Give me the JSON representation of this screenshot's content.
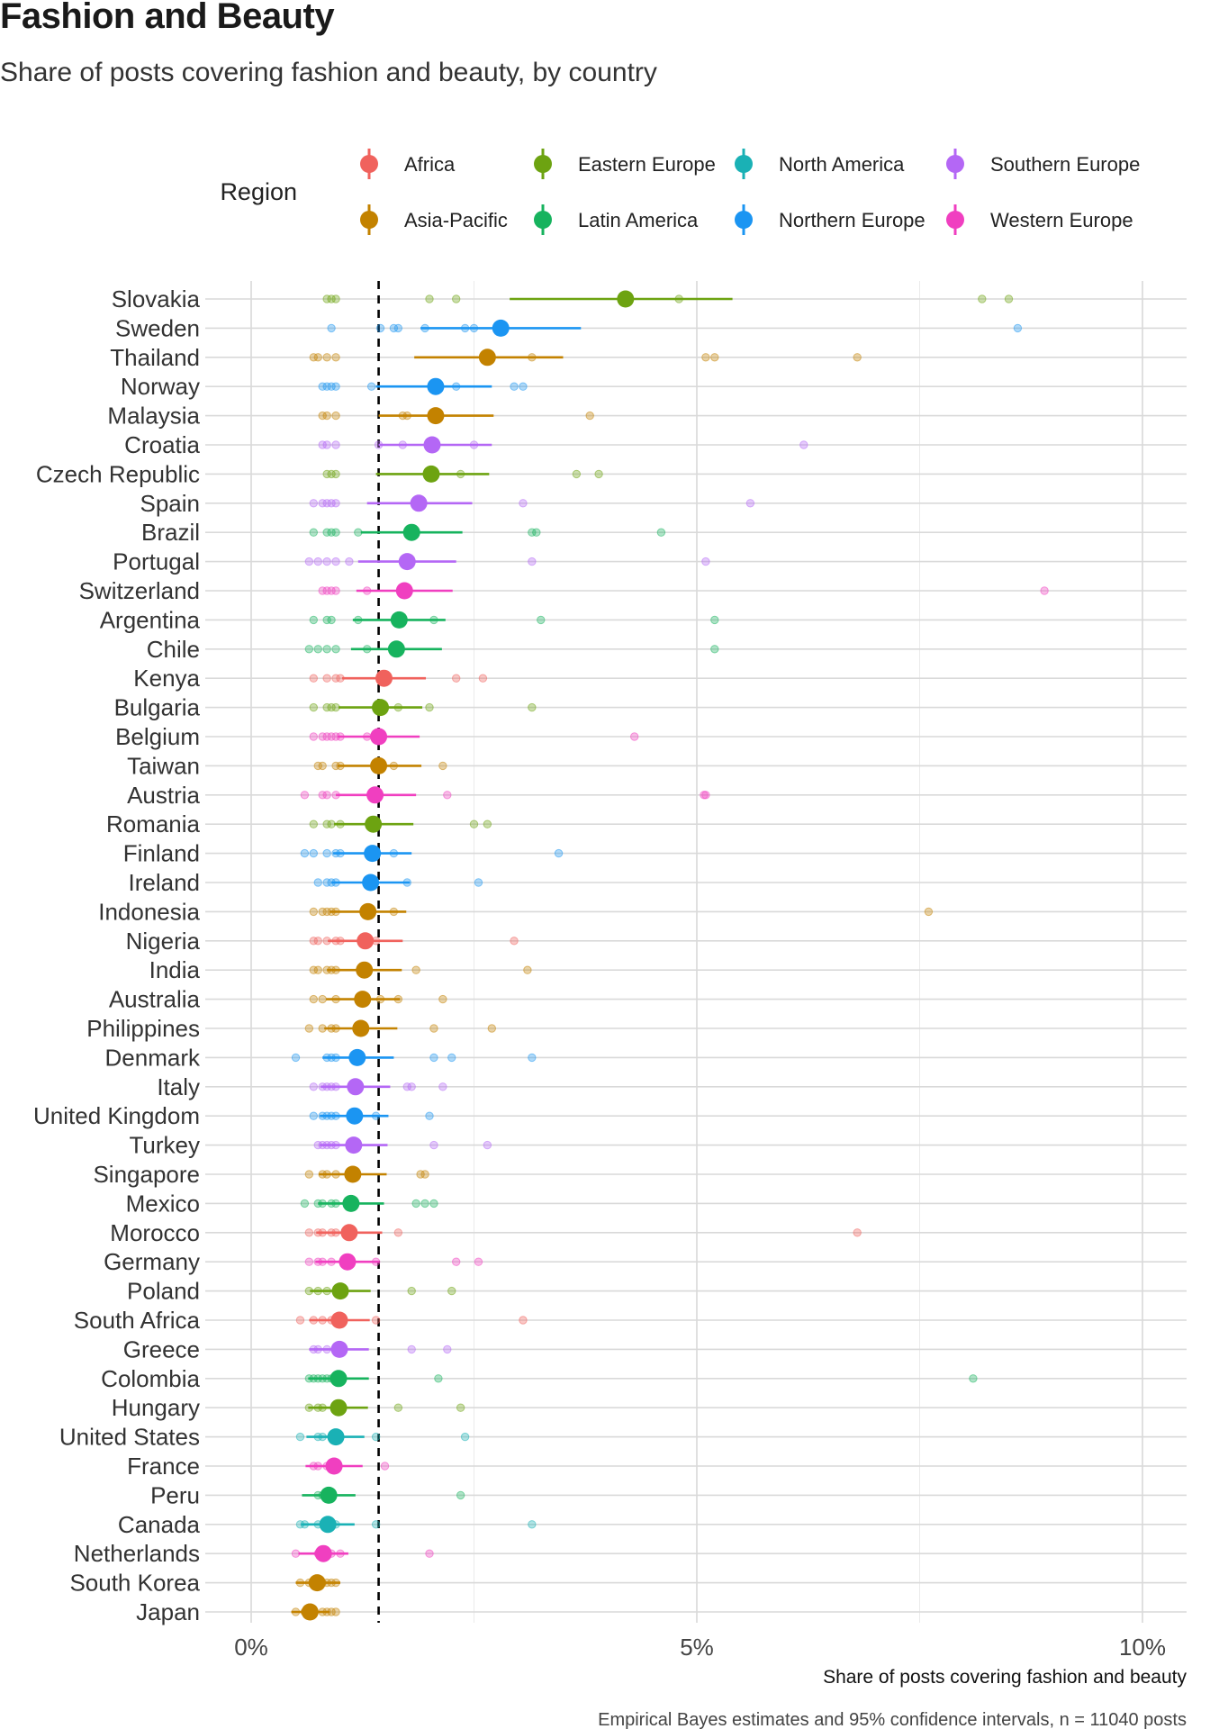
{
  "title": "Fashion and Beauty",
  "subtitle": "Share of posts covering fashion and beauty, by country",
  "caption": "Empirical Bayes estimates and 95% confidence intervals, n = 11040 posts",
  "legend": {
    "title": "Region",
    "items": [
      {
        "name": "Africa",
        "color": "#F0625D"
      },
      {
        "name": "Eastern Europe",
        "color": "#6DA311"
      },
      {
        "name": "North America",
        "color": "#1AB1B5"
      },
      {
        "name": "Southern Europe",
        "color": "#B467F5"
      },
      {
        "name": "Asia-Pacific",
        "color": "#C38200"
      },
      {
        "name": "Latin America",
        "color": "#17B35E"
      },
      {
        "name": "Northern Europe",
        "color": "#1B95F2"
      },
      {
        "name": "Western Europe",
        "color": "#F03FC0"
      }
    ]
  },
  "chart_data": {
    "type": "scatter",
    "title": "Fashion and Beauty",
    "xlabel": "Share of posts covering fashion and beauty",
    "ylabel": "",
    "xlim": [
      -1,
      10.5
    ],
    "xticks": [
      0,
      5,
      10
    ],
    "xtick_labels": [
      "0%",
      "5%",
      "10%"
    ],
    "reference_line": 1.43,
    "series": [
      {
        "country": "Slovakia",
        "region": "Eastern Europe",
        "estimate": 4.2,
        "ci": [
          2.9,
          5.4
        ],
        "points": [
          0.85,
          0.9,
          0.95,
          2.0,
          2.3,
          4.8,
          8.2,
          8.5
        ]
      },
      {
        "country": "Sweden",
        "region": "Northern Europe",
        "estimate": 2.8,
        "ci": [
          1.9,
          3.7
        ],
        "points": [
          0.9,
          1.45,
          1.6,
          1.65,
          1.95,
          2.4,
          2.5,
          8.6
        ]
      },
      {
        "country": "Thailand",
        "region": "Asia-Pacific",
        "estimate": 2.65,
        "ci": [
          1.83,
          3.5
        ],
        "points": [
          0.7,
          0.75,
          0.85,
          0.95,
          3.15,
          5.1,
          5.2,
          6.8
        ]
      },
      {
        "country": "Norway",
        "region": "Northern Europe",
        "estimate": 2.07,
        "ci": [
          1.4,
          2.7
        ],
        "points": [
          0.8,
          0.85,
          0.9,
          0.95,
          1.35,
          2.3,
          2.95,
          3.05
        ]
      },
      {
        "country": "Malaysia",
        "region": "Asia-Pacific",
        "estimate": 2.07,
        "ci": [
          1.43,
          2.72
        ],
        "points": [
          0.8,
          0.85,
          0.95,
          1.7,
          1.75,
          3.8
        ]
      },
      {
        "country": "Croatia",
        "region": "Southern Europe",
        "estimate": 2.03,
        "ci": [
          1.43,
          2.7
        ],
        "points": [
          0.8,
          0.85,
          0.95,
          1.43,
          1.7,
          2.5,
          6.2
        ]
      },
      {
        "country": "Czech Republic",
        "region": "Eastern Europe",
        "estimate": 2.02,
        "ci": [
          1.4,
          2.67
        ],
        "points": [
          0.85,
          0.9,
          0.95,
          2.35,
          3.65,
          3.9
        ]
      },
      {
        "country": "Spain",
        "region": "Southern Europe",
        "estimate": 1.88,
        "ci": [
          1.3,
          2.48
        ],
        "points": [
          0.7,
          0.8,
          0.85,
          0.9,
          0.95,
          3.05,
          5.6
        ]
      },
      {
        "country": "Brazil",
        "region": "Latin America",
        "estimate": 1.8,
        "ci": [
          1.23,
          2.37
        ],
        "points": [
          0.7,
          0.85,
          0.9,
          0.95,
          1.2,
          3.15,
          3.2,
          4.6
        ]
      },
      {
        "country": "Portugal",
        "region": "Southern Europe",
        "estimate": 1.75,
        "ci": [
          1.2,
          2.3
        ],
        "points": [
          0.65,
          0.75,
          0.85,
          0.95,
          1.1,
          3.15,
          5.1
        ]
      },
      {
        "country": "Switzerland",
        "region": "Western Europe",
        "estimate": 1.72,
        "ci": [
          1.18,
          2.26
        ],
        "points": [
          0.8,
          0.85,
          0.9,
          0.95,
          1.3,
          8.9
        ]
      },
      {
        "country": "Argentina",
        "region": "Latin America",
        "estimate": 1.66,
        "ci": [
          1.14,
          2.18
        ],
        "points": [
          0.7,
          0.85,
          0.9,
          1.2,
          2.05,
          3.25,
          5.2
        ]
      },
      {
        "country": "Chile",
        "region": "Latin America",
        "estimate": 1.63,
        "ci": [
          1.12,
          2.14
        ],
        "points": [
          0.65,
          0.75,
          0.85,
          0.95,
          1.3,
          5.2
        ]
      },
      {
        "country": "Kenya",
        "region": "Africa",
        "estimate": 1.49,
        "ci": [
          1.02,
          1.96
        ],
        "points": [
          0.7,
          0.85,
          0.95,
          1.0,
          1.45,
          2.3,
          2.6
        ]
      },
      {
        "country": "Bulgaria",
        "region": "Eastern Europe",
        "estimate": 1.45,
        "ci": [
          0.98,
          1.92
        ],
        "points": [
          0.7,
          0.85,
          0.9,
          0.95,
          1.45,
          1.65,
          2.0,
          3.15
        ]
      },
      {
        "country": "Belgium",
        "region": "Western Europe",
        "estimate": 1.43,
        "ci": [
          0.97,
          1.89
        ],
        "points": [
          0.7,
          0.8,
          0.85,
          0.9,
          0.95,
          1.0,
          1.3,
          4.3
        ]
      },
      {
        "country": "Taiwan",
        "region": "Asia-Pacific",
        "estimate": 1.43,
        "ci": [
          0.97,
          1.91
        ],
        "points": [
          0.75,
          0.8,
          0.95,
          1.0,
          1.6,
          2.15
        ]
      },
      {
        "country": "Austria",
        "region": "Western Europe",
        "estimate": 1.39,
        "ci": [
          0.95,
          1.85
        ],
        "points": [
          0.6,
          0.8,
          0.85,
          0.95,
          2.2,
          5.08,
          5.1
        ]
      },
      {
        "country": "Romania",
        "region": "Eastern Europe",
        "estimate": 1.37,
        "ci": [
          0.93,
          1.82
        ],
        "points": [
          0.7,
          0.85,
          0.9,
          1.0,
          2.5,
          2.65
        ]
      },
      {
        "country": "Finland",
        "region": "Northern Europe",
        "estimate": 1.36,
        "ci": [
          0.92,
          1.8
        ],
        "points": [
          0.6,
          0.7,
          0.85,
          0.95,
          1.0,
          1.6,
          3.45
        ]
      },
      {
        "country": "Ireland",
        "region": "Northern Europe",
        "estimate": 1.34,
        "ci": [
          0.9,
          1.78
        ],
        "points": [
          0.75,
          0.85,
          0.9,
          0.95,
          1.75,
          2.55
        ]
      },
      {
        "country": "Indonesia",
        "region": "Asia-Pacific",
        "estimate": 1.31,
        "ci": [
          0.88,
          1.74
        ],
        "points": [
          0.7,
          0.8,
          0.85,
          0.9,
          0.95,
          1.6,
          7.6
        ]
      },
      {
        "country": "Nigeria",
        "region": "Africa",
        "estimate": 1.28,
        "ci": [
          0.86,
          1.7
        ],
        "points": [
          0.7,
          0.75,
          0.85,
          0.95,
          1.0,
          1.4,
          2.95
        ]
      },
      {
        "country": "India",
        "region": "Asia-Pacific",
        "estimate": 1.27,
        "ci": [
          0.85,
          1.69
        ],
        "points": [
          0.7,
          0.75,
          0.85,
          0.9,
          0.95,
          1.85,
          3.1
        ]
      },
      {
        "country": "Australia",
        "region": "Asia-Pacific",
        "estimate": 1.25,
        "ci": [
          0.84,
          1.67
        ],
        "points": [
          0.7,
          0.8,
          0.95,
          1.45,
          1.65,
          2.15
        ]
      },
      {
        "country": "Philippines",
        "region": "Asia-Pacific",
        "estimate": 1.23,
        "ci": [
          0.82,
          1.64
        ],
        "points": [
          0.65,
          0.8,
          0.9,
          0.95,
          2.05,
          2.7
        ]
      },
      {
        "country": "Denmark",
        "region": "Northern Europe",
        "estimate": 1.19,
        "ci": [
          0.8,
          1.6
        ],
        "points": [
          0.5,
          0.85,
          0.9,
          0.95,
          2.05,
          2.25,
          3.15
        ]
      },
      {
        "country": "Italy",
        "region": "Southern Europe",
        "estimate": 1.17,
        "ci": [
          0.78,
          1.56
        ],
        "points": [
          0.7,
          0.8,
          0.85,
          0.9,
          0.95,
          1.75,
          1.8,
          2.15
        ]
      },
      {
        "country": "United Kingdom",
        "region": "Northern Europe",
        "estimate": 1.16,
        "ci": [
          0.77,
          1.54
        ],
        "points": [
          0.7,
          0.8,
          0.85,
          0.9,
          0.95,
          1.4,
          2.0
        ]
      },
      {
        "country": "Turkey",
        "region": "Southern Europe",
        "estimate": 1.15,
        "ci": [
          0.77,
          1.53
        ],
        "points": [
          0.75,
          0.8,
          0.85,
          0.9,
          0.95,
          2.05,
          2.65
        ]
      },
      {
        "country": "Singapore",
        "region": "Asia-Pacific",
        "estimate": 1.14,
        "ci": [
          0.76,
          1.52
        ],
        "points": [
          0.65,
          0.8,
          0.85,
          0.95,
          1.9,
          1.95
        ]
      },
      {
        "country": "Mexico",
        "region": "Latin America",
        "estimate": 1.12,
        "ci": [
          0.75,
          1.49
        ],
        "points": [
          0.6,
          0.75,
          0.8,
          0.9,
          0.95,
          1.85,
          1.95,
          2.05
        ]
      },
      {
        "country": "Morocco",
        "region": "Africa",
        "estimate": 1.1,
        "ci": [
          0.73,
          1.47
        ],
        "points": [
          0.65,
          0.75,
          0.8,
          0.9,
          0.95,
          1.65,
          6.8
        ]
      },
      {
        "country": "Germany",
        "region": "Western Europe",
        "estimate": 1.08,
        "ci": [
          0.72,
          1.44
        ],
        "points": [
          0.65,
          0.75,
          0.8,
          0.9,
          1.4,
          2.3,
          2.55
        ]
      },
      {
        "country": "Poland",
        "region": "Eastern Europe",
        "estimate": 1.0,
        "ci": [
          0.66,
          1.34
        ],
        "points": [
          0.65,
          0.75,
          0.85,
          0.95,
          1.8,
          2.25
        ]
      },
      {
        "country": "South Africa",
        "region": "Africa",
        "estimate": 0.99,
        "ci": [
          0.65,
          1.33
        ],
        "points": [
          0.55,
          0.7,
          0.8,
          0.9,
          1.4,
          3.05
        ]
      },
      {
        "country": "Greece",
        "region": "Southern Europe",
        "estimate": 0.99,
        "ci": [
          0.65,
          1.32
        ],
        "points": [
          0.7,
          0.75,
          0.85,
          0.95,
          1.8,
          2.2
        ]
      },
      {
        "country": "Colombia",
        "region": "Latin America",
        "estimate": 0.98,
        "ci": [
          0.64,
          1.32
        ],
        "points": [
          0.65,
          0.7,
          0.75,
          0.8,
          0.85,
          0.9,
          0.95,
          2.1,
          8.1
        ]
      },
      {
        "country": "Hungary",
        "region": "Eastern Europe",
        "estimate": 0.98,
        "ci": [
          0.64,
          1.31
        ],
        "points": [
          0.65,
          0.75,
          0.8,
          0.95,
          1.65,
          2.35
        ]
      },
      {
        "country": "United States",
        "region": "North America",
        "estimate": 0.95,
        "ci": [
          0.62,
          1.27
        ],
        "points": [
          0.55,
          0.75,
          0.8,
          0.9,
          1.4,
          2.4
        ]
      },
      {
        "country": "France",
        "region": "Western Europe",
        "estimate": 0.93,
        "ci": [
          0.61,
          1.25
        ],
        "points": [
          0.7,
          0.75,
          0.85,
          0.95,
          1.5
        ]
      },
      {
        "country": "Peru",
        "region": "Latin America",
        "estimate": 0.87,
        "ci": [
          0.57,
          1.17
        ],
        "points": [
          0.75,
          0.8,
          0.85,
          0.9,
          2.35
        ]
      },
      {
        "country": "Canada",
        "region": "North America",
        "estimate": 0.86,
        "ci": [
          0.56,
          1.16
        ],
        "points": [
          0.55,
          0.6,
          0.75,
          0.9,
          0.95,
          1.4,
          3.15
        ]
      },
      {
        "country": "Netherlands",
        "region": "Western Europe",
        "estimate": 0.81,
        "ci": [
          0.53,
          1.09
        ],
        "points": [
          0.5,
          0.75,
          0.8,
          0.9,
          1.0,
          2.0
        ]
      },
      {
        "country": "South Korea",
        "region": "Asia-Pacific",
        "estimate": 0.74,
        "ci": [
          0.5,
          1.0
        ],
        "points": [
          0.55,
          0.65,
          0.8,
          0.85,
          0.9,
          0.95
        ]
      },
      {
        "country": "Japan",
        "region": "Asia-Pacific",
        "estimate": 0.66,
        "ci": [
          0.45,
          0.88
        ],
        "points": [
          0.5,
          0.6,
          0.7,
          0.8,
          0.85,
          0.9,
          0.95
        ]
      }
    ]
  }
}
